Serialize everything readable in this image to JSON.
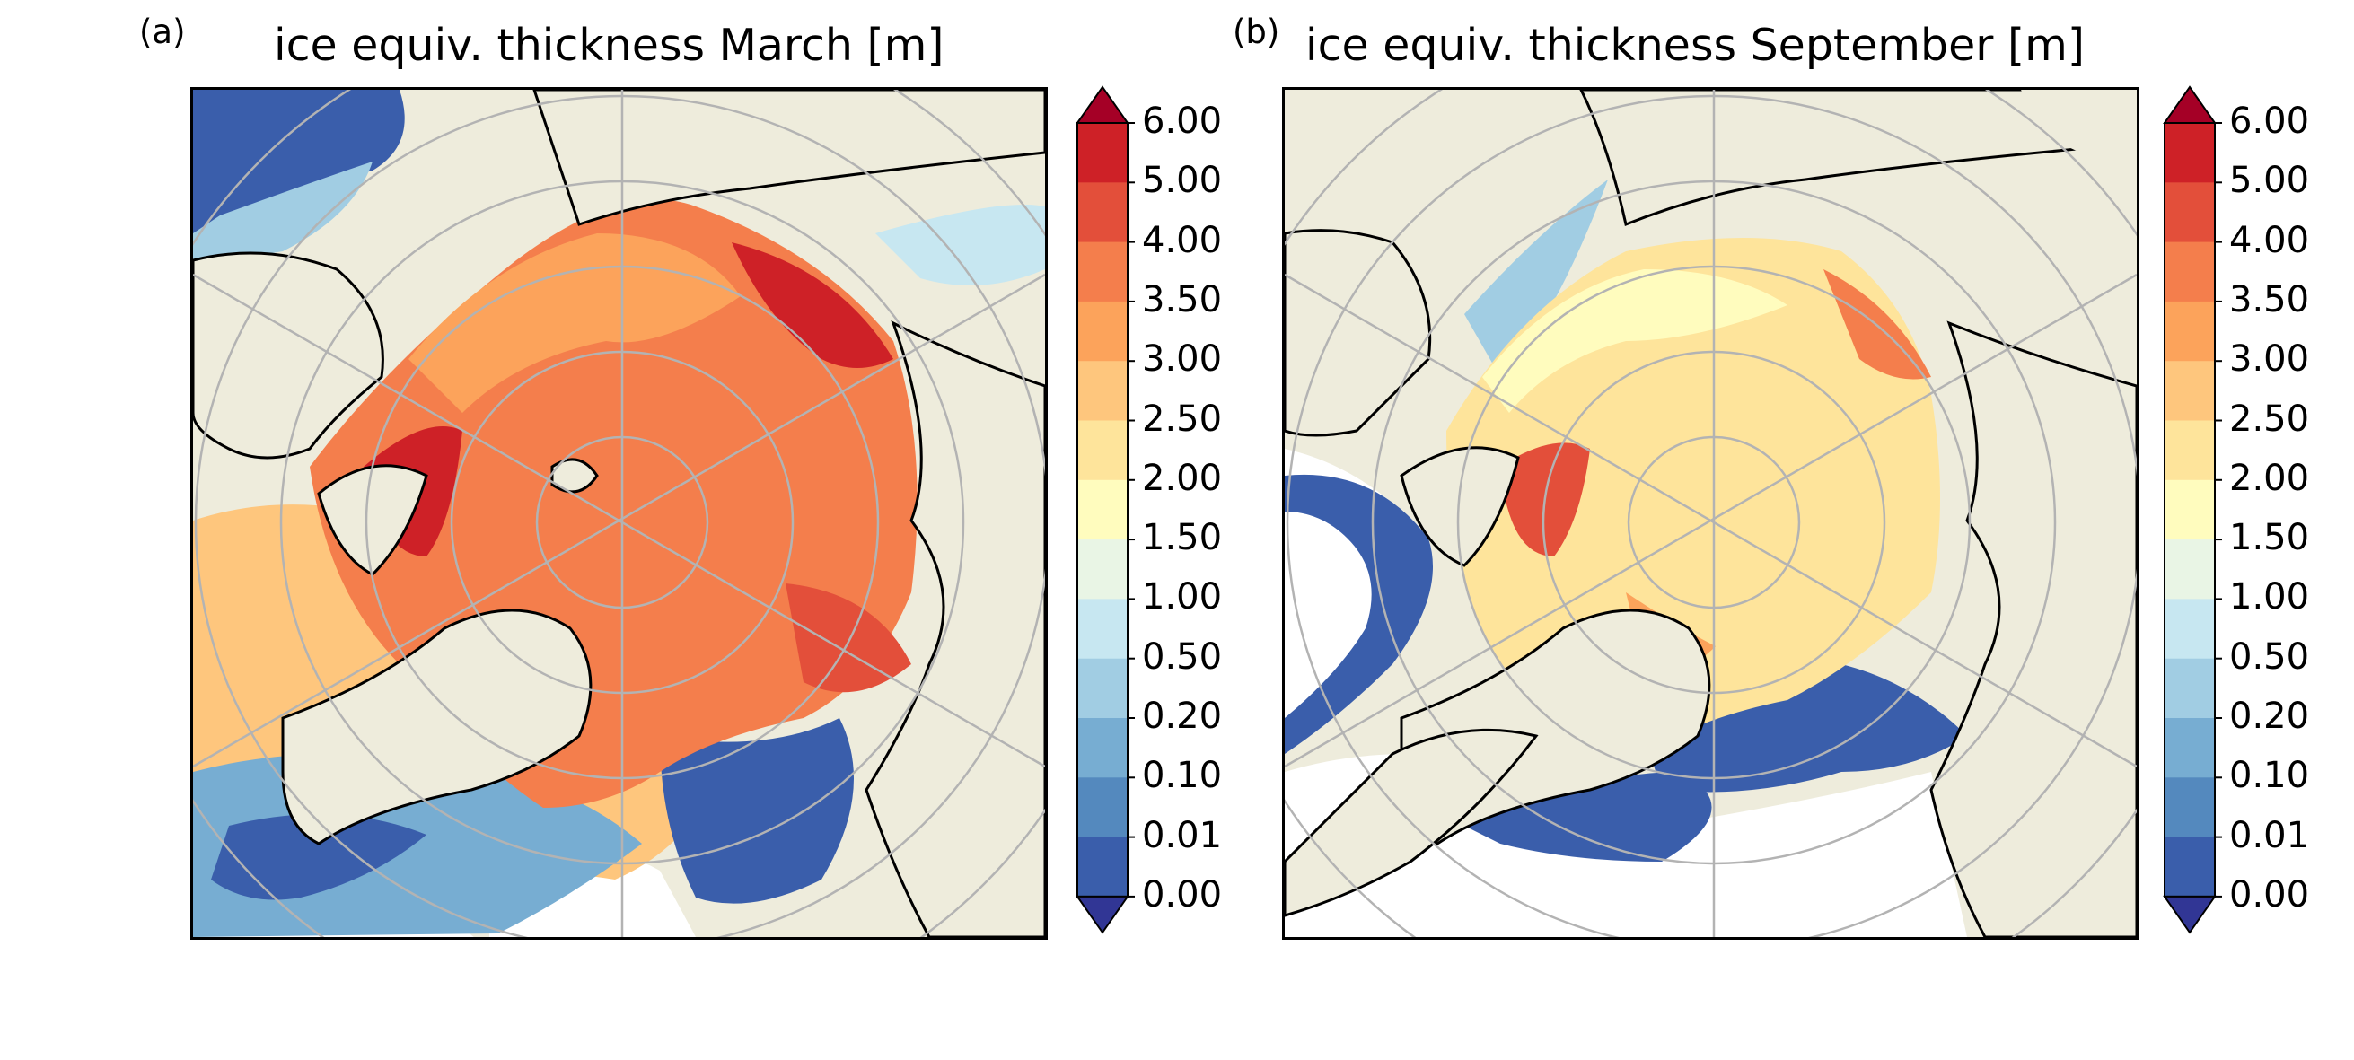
{
  "figure": {
    "panels": [
      {
        "label": "(a)",
        "title": "ice equiv. thickness March [m]",
        "month": "March"
      },
      {
        "label": "(b)",
        "title": "ice equiv. thickness September [m]",
        "month": "September"
      }
    ],
    "colorbar": {
      "labels": [
        "6.00",
        "5.00",
        "4.00",
        "3.50",
        "3.00",
        "2.50",
        "2.00",
        "1.50",
        "1.00",
        "0.50",
        "0.20",
        "0.10",
        "0.01",
        "0.00"
      ],
      "colors": [
        "#ce2127",
        "#e34f3a",
        "#f47e4c",
        "#fca35b",
        "#fec67d",
        "#fee49b",
        "#fffcbe",
        "#e9f5e5",
        "#c7e7f1",
        "#a1cde3",
        "#77add2",
        "#5489be",
        "#3a5eab"
      ],
      "extend_max_color": "#a50026",
      "extend_min_color": "#313695"
    },
    "colors": {
      "land": "#eeecdc",
      "ocean": "#ffffff",
      "graticule": "#b3b3b3",
      "coastline": "#000000"
    }
  }
}
